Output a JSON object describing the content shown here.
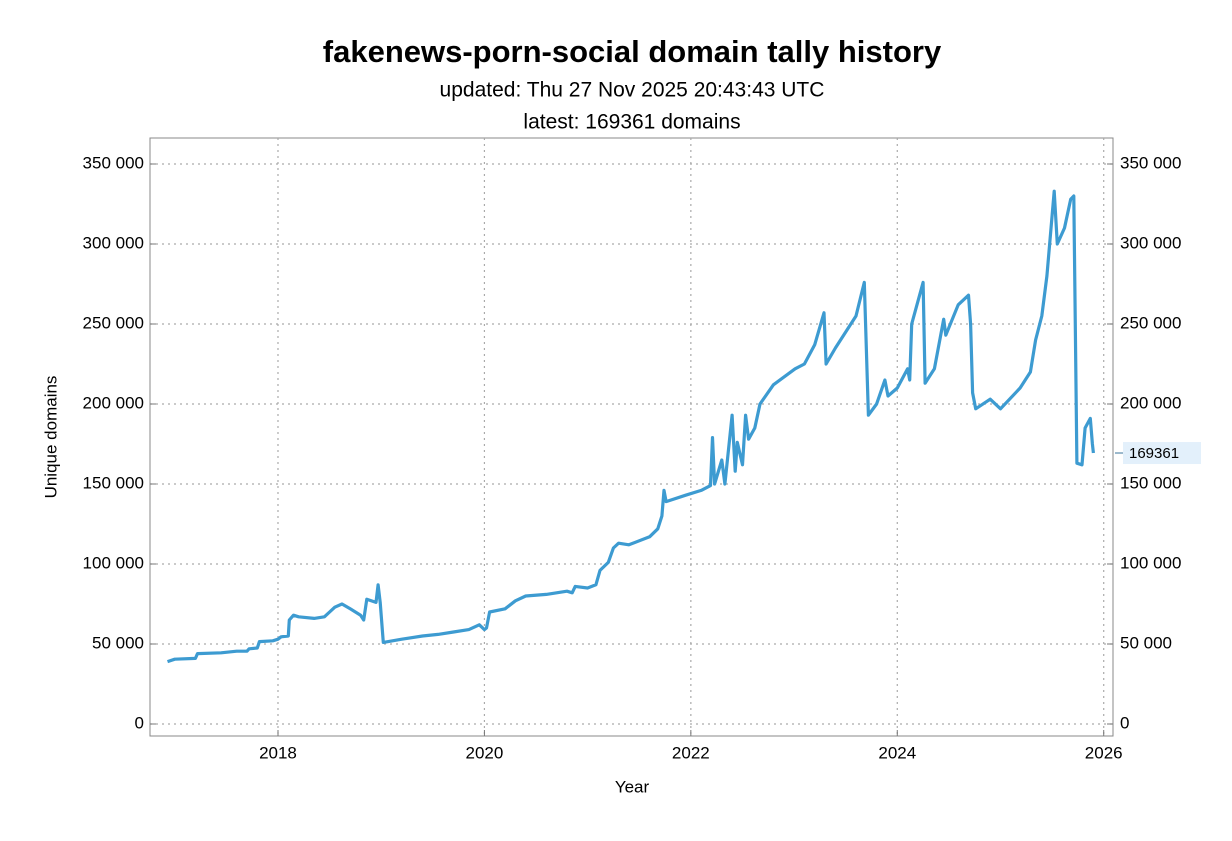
{
  "chart_data": {
    "type": "line",
    "title": "fakenews-porn-social domain tally history",
    "subtitle": [
      "updated: Thu 27 Nov 2025 20:43:43 UTC",
      "latest: 169361 domains"
    ],
    "x_label": "Year",
    "y_label": "Unique domains",
    "color": "#3d9bd1",
    "grid": true,
    "xlim": [
      2016.76,
      2026.09
    ],
    "xticks": [
      2018,
      2020,
      2022,
      2024,
      2026
    ],
    "ylim": [
      -7500,
      366250
    ],
    "yticks": [
      {
        "value": 0,
        "label": "0"
      },
      {
        "value": 50000,
        "label": "50 000"
      },
      {
        "value": 100000,
        "label": "100 000"
      },
      {
        "value": 150000,
        "label": "150 000"
      },
      {
        "value": 200000,
        "label": "200 000"
      },
      {
        "value": 250000,
        "label": "250 000"
      },
      {
        "value": 300000,
        "label": "300 000"
      },
      {
        "value": 350000,
        "label": "350 000"
      }
    ],
    "y2lim": [
      -7500,
      366250
    ],
    "y2ticks": [
      {
        "value": 0,
        "label": "0"
      },
      {
        "value": 50000,
        "label": "50 000"
      },
      {
        "value": 100000,
        "label": "100 000"
      },
      {
        "value": 150000,
        "label": "150 000"
      },
      {
        "value": 200000,
        "label": "200 000"
      },
      {
        "value": 250000,
        "label": "250 000"
      },
      {
        "value": 300000,
        "label": "300 000"
      },
      {
        "value": 350000,
        "label": "350 000"
      }
    ],
    "annotations": [
      {
        "y": 169361
      }
    ],
    "x": [
      2016.93,
      2017.0,
      2017.2,
      2017.22,
      2017.45,
      2017.6,
      2017.7,
      2017.72,
      2017.8,
      2017.82,
      2017.95,
      2018.0,
      2018.03,
      2018.1,
      2018.11,
      2018.15,
      2018.2,
      2018.35,
      2018.45,
      2018.5,
      2018.55,
      2018.62,
      2018.7,
      2018.8,
      2018.83,
      2018.86,
      2018.95,
      2018.97,
      2018.99,
      2019.02,
      2019.2,
      2019.4,
      2019.55,
      2019.7,
      2019.85,
      2019.95,
      2020.0,
      2020.02,
      2020.05,
      2020.2,
      2020.3,
      2020.4,
      2020.6,
      2020.8,
      2020.85,
      2020.88,
      2021.0,
      2021.08,
      2021.12,
      2021.2,
      2021.25,
      2021.3,
      2021.4,
      2021.6,
      2021.68,
      2021.72,
      2021.74,
      2021.76,
      2021.95,
      2022.1,
      2022.19,
      2022.21,
      2022.23,
      2022.3,
      2022.33,
      2022.4,
      2022.43,
      2022.45,
      2022.5,
      2022.53,
      2022.56,
      2022.62,
      2022.67,
      2022.8,
      2023.01,
      2023.1,
      2023.2,
      2023.29,
      2023.31,
      2023.4,
      2023.5,
      2023.6,
      2023.68,
      2023.72,
      2023.8,
      2023.88,
      2023.91,
      2024.0,
      2024.1,
      2024.12,
      2024.14,
      2024.25,
      2024.27,
      2024.36,
      2024.45,
      2024.47,
      2024.59,
      2024.69,
      2024.71,
      2024.73,
      2024.76,
      2024.9,
      2025.0,
      2025.19,
      2025.29,
      2025.34,
      2025.4,
      2025.45,
      2025.52,
      2025.55,
      2025.62,
      2025.68,
      2025.71,
      2025.74,
      2025.79,
      2025.82,
      2025.87,
      2025.89,
      2025.9
    ],
    "values": [
      39000,
      40500,
      41000,
      44000,
      44500,
      45500,
      45500,
      47000,
      47500,
      51500,
      52000,
      53000,
      54500,
      55000,
      65000,
      68000,
      67000,
      66000,
      67000,
      70000,
      73000,
      75000,
      72000,
      68000,
      65000,
      78000,
      76000,
      87000,
      76000,
      51000,
      53000,
      55000,
      56000,
      57500,
      59000,
      62000,
      59000,
      60000,
      70000,
      72000,
      77000,
      80000,
      81000,
      83000,
      82000,
      86000,
      85000,
      87000,
      96000,
      101000,
      110000,
      113000,
      112000,
      117000,
      122000,
      130000,
      146000,
      139000,
      143000,
      146000,
      149000,
      179000,
      150000,
      165000,
      150000,
      193000,
      158000,
      176000,
      162000,
      193000,
      178000,
      185000,
      200000,
      212000,
      222000,
      225000,
      237000,
      257000,
      225000,
      235000,
      245000,
      255000,
      276000,
      193000,
      200000,
      215000,
      205000,
      210000,
      222000,
      215000,
      250000,
      276000,
      213000,
      222000,
      253000,
      243000,
      262000,
      268000,
      250000,
      207000,
      197000,
      203000,
      197000,
      210000,
      220000,
      240000,
      255000,
      280000,
      333000,
      300000,
      310000,
      328000,
      330000,
      163000,
      162000,
      185000,
      191000,
      175000,
      169361
    ]
  }
}
